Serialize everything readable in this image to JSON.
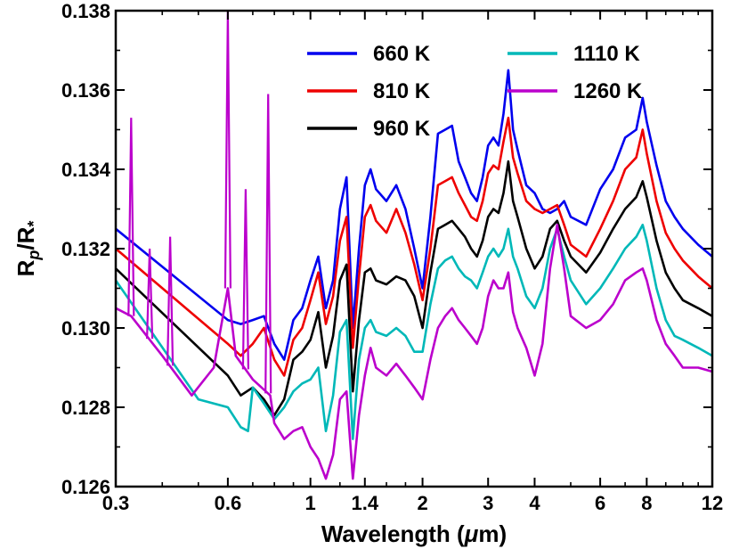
{
  "chart_data": {
    "type": "line",
    "xscale": "log",
    "xlabel_main": "Wavelength (",
    "xlabel_mu": "μ",
    "xlabel_unit": "m)",
    "ylabel_r": "R",
    "ylabel_p": "p",
    "ylabel_slash": "/R",
    "ylabel_star": "*",
    "xlim": [
      0.3,
      12
    ],
    "ylim": [
      0.126,
      0.138
    ],
    "xticks": [
      {
        "v": 0.3,
        "label": "0.3"
      },
      {
        "v": 0.6,
        "label": "0.6"
      },
      {
        "v": 1,
        "label": "1"
      },
      {
        "v": 1.4,
        "label": "1.4"
      },
      {
        "v": 2,
        "label": "2"
      },
      {
        "v": 3,
        "label": "3"
      },
      {
        "v": 4,
        "label": "4"
      },
      {
        "v": 6,
        "label": "6"
      },
      {
        "v": 8,
        "label": "8"
      },
      {
        "v": 12,
        "label": "12"
      }
    ],
    "xminor": [
      0.4,
      0.5,
      0.7,
      0.8,
      0.9,
      1.2,
      1.6,
      1.8,
      5,
      7,
      9,
      10,
      11
    ],
    "yticks": [
      {
        "v": 0.126,
        "label": "0.126"
      },
      {
        "v": 0.128,
        "label": "0.128"
      },
      {
        "v": 0.13,
        "label": "0.130"
      },
      {
        "v": 0.132,
        "label": "0.132"
      },
      {
        "v": 0.134,
        "label": "0.134"
      },
      {
        "v": 0.136,
        "label": "0.136"
      },
      {
        "v": 0.138,
        "label": "0.138"
      }
    ],
    "legend_position": "top-right",
    "series": [
      {
        "name": "660 K",
        "color": "#0000ee",
        "x": [
          0.3,
          0.6,
          0.65,
          0.7,
          0.75,
          0.8,
          0.85,
          0.9,
          0.95,
          1.0,
          1.05,
          1.1,
          1.15,
          1.2,
          1.25,
          1.3,
          1.35,
          1.4,
          1.45,
          1.5,
          1.6,
          1.7,
          1.8,
          1.9,
          2.0,
          2.1,
          2.2,
          2.3,
          2.4,
          2.5,
          2.6,
          2.7,
          2.8,
          2.9,
          3.0,
          3.1,
          3.2,
          3.3,
          3.4,
          3.5,
          3.6,
          3.8,
          4.0,
          4.2,
          4.4,
          4.6,
          4.8,
          5.0,
          5.5,
          6.0,
          6.5,
          7.0,
          7.5,
          7.8,
          8.0,
          8.5,
          9.0,
          9.5,
          10.0,
          11.0,
          12.0
        ],
        "y": [
          0.1325,
          0.1302,
          0.1301,
          0.1302,
          0.1303,
          0.1296,
          0.1292,
          0.1302,
          0.1305,
          0.1312,
          0.1318,
          0.1305,
          0.1312,
          0.133,
          0.1338,
          0.13,
          0.132,
          0.1336,
          0.134,
          0.1335,
          0.1332,
          0.1336,
          0.133,
          0.132,
          0.131,
          0.1328,
          0.1349,
          0.135,
          0.1351,
          0.1342,
          0.1338,
          0.1334,
          0.1332,
          0.1338,
          0.1346,
          0.1348,
          0.1346,
          0.1354,
          0.1365,
          0.135,
          0.1345,
          0.1336,
          0.1334,
          0.133,
          0.1329,
          0.133,
          0.1332,
          0.1328,
          0.1326,
          0.1335,
          0.134,
          0.1348,
          0.135,
          0.1358,
          0.1352,
          0.1341,
          0.1332,
          0.1328,
          0.1325,
          0.1321,
          0.1318
        ]
      },
      {
        "name": "810 K",
        "color": "#ee0000",
        "x": [
          0.3,
          0.6,
          0.65,
          0.7,
          0.75,
          0.8,
          0.85,
          0.9,
          0.95,
          1.0,
          1.05,
          1.1,
          1.15,
          1.2,
          1.25,
          1.3,
          1.35,
          1.4,
          1.45,
          1.5,
          1.6,
          1.7,
          1.8,
          1.9,
          2.0,
          2.1,
          2.2,
          2.3,
          2.4,
          2.5,
          2.6,
          2.7,
          2.8,
          2.9,
          3.0,
          3.1,
          3.2,
          3.3,
          3.4,
          3.5,
          3.6,
          3.8,
          4.0,
          4.2,
          4.4,
          4.6,
          4.8,
          5.0,
          5.5,
          6.0,
          6.5,
          7.0,
          7.5,
          7.8,
          8.0,
          8.5,
          9.0,
          9.5,
          10.0,
          11.0,
          12.0
        ],
        "y": [
          0.132,
          0.1296,
          0.1293,
          0.1296,
          0.13,
          0.1292,
          0.1288,
          0.1297,
          0.13,
          0.1307,
          0.1314,
          0.1301,
          0.1308,
          0.1322,
          0.1328,
          0.1295,
          0.1313,
          0.1328,
          0.1331,
          0.1327,
          0.1324,
          0.133,
          0.1324,
          0.1316,
          0.1307,
          0.132,
          0.1336,
          0.1337,
          0.1338,
          0.1334,
          0.1331,
          0.1328,
          0.1327,
          0.1332,
          0.1339,
          0.1341,
          0.134,
          0.1347,
          0.1353,
          0.1343,
          0.1339,
          0.1332,
          0.133,
          0.1329,
          0.133,
          0.1331,
          0.1326,
          0.1321,
          0.1318,
          0.1325,
          0.1332,
          0.134,
          0.1343,
          0.135,
          0.1344,
          0.1332,
          0.1324,
          0.132,
          0.1317,
          0.1313,
          0.131
        ]
      },
      {
        "name": "960 K",
        "color": "#000000",
        "x": [
          0.3,
          0.6,
          0.65,
          0.7,
          0.75,
          0.8,
          0.85,
          0.9,
          0.95,
          1.0,
          1.05,
          1.1,
          1.15,
          1.2,
          1.25,
          1.3,
          1.35,
          1.4,
          1.45,
          1.5,
          1.6,
          1.7,
          1.8,
          1.9,
          2.0,
          2.1,
          2.2,
          2.3,
          2.4,
          2.5,
          2.6,
          2.7,
          2.8,
          2.9,
          3.0,
          3.1,
          3.2,
          3.3,
          3.4,
          3.5,
          3.6,
          3.8,
          4.0,
          4.2,
          4.4,
          4.6,
          4.8,
          5.0,
          5.5,
          6.0,
          6.5,
          7.0,
          7.5,
          7.8,
          8.0,
          8.5,
          9.0,
          9.5,
          10.0,
          11.0,
          12.0
        ],
        "y": [
          0.1315,
          0.1288,
          0.1283,
          0.1285,
          0.1282,
          0.1278,
          0.1282,
          0.1292,
          0.1294,
          0.1297,
          0.1304,
          0.129,
          0.1298,
          0.1312,
          0.1316,
          0.1284,
          0.1302,
          0.1314,
          0.1315,
          0.1312,
          0.1311,
          0.1313,
          0.1312,
          0.1308,
          0.13,
          0.1314,
          0.1325,
          0.1326,
          0.1327,
          0.1325,
          0.1323,
          0.132,
          0.1318,
          0.1322,
          0.1328,
          0.133,
          0.1329,
          0.1334,
          0.1342,
          0.1332,
          0.1328,
          0.132,
          0.1315,
          0.1318,
          0.1325,
          0.1327,
          0.1322,
          0.1318,
          0.1314,
          0.1319,
          0.1325,
          0.133,
          0.1333,
          0.1337,
          0.1333,
          0.1322,
          0.1314,
          0.131,
          0.1307,
          0.1305,
          0.1303
        ]
      },
      {
        "name": "1110 K",
        "color": "#00b8b8",
        "x": [
          0.3,
          0.5,
          0.6,
          0.65,
          0.68,
          0.7,
          0.75,
          0.8,
          0.85,
          0.9,
          0.95,
          1.0,
          1.05,
          1.1,
          1.15,
          1.2,
          1.25,
          1.3,
          1.35,
          1.4,
          1.45,
          1.5,
          1.6,
          1.7,
          1.8,
          1.9,
          2.0,
          2.1,
          2.2,
          2.3,
          2.4,
          2.5,
          2.6,
          2.7,
          2.8,
          2.9,
          3.0,
          3.1,
          3.2,
          3.3,
          3.4,
          3.5,
          3.6,
          3.8,
          4.0,
          4.2,
          4.4,
          4.6,
          4.8,
          5.0,
          5.5,
          6.0,
          6.5,
          7.0,
          7.5,
          7.8,
          8.0,
          8.5,
          9.0,
          9.5,
          10.0,
          11.0,
          12.0
        ],
        "y": [
          0.1312,
          0.1282,
          0.128,
          0.1275,
          0.1274,
          0.1285,
          0.1281,
          0.1277,
          0.128,
          0.1284,
          0.1286,
          0.1287,
          0.129,
          0.1274,
          0.1283,
          0.1299,
          0.1302,
          0.1272,
          0.1292,
          0.13,
          0.1302,
          0.1299,
          0.1298,
          0.13,
          0.1298,
          0.1294,
          0.1294,
          0.1306,
          0.1315,
          0.1317,
          0.1318,
          0.1315,
          0.1313,
          0.1312,
          0.131,
          0.1314,
          0.1318,
          0.132,
          0.1318,
          0.132,
          0.1325,
          0.1318,
          0.1315,
          0.1308,
          0.1305,
          0.131,
          0.132,
          0.1325,
          0.1318,
          0.1312,
          0.1306,
          0.131,
          0.1315,
          0.132,
          0.1323,
          0.1326,
          0.1322,
          0.131,
          0.1302,
          0.1298,
          0.1297,
          0.1295,
          0.1293
        ]
      },
      {
        "name": "1260 K",
        "color": "#bb00cc",
        "x": [
          0.3,
          0.33,
          0.4,
          0.48,
          0.55,
          0.6,
          0.63,
          0.7,
          0.78,
          0.8,
          0.85,
          0.9,
          0.95,
          1.0,
          1.05,
          1.1,
          1.15,
          1.2,
          1.25,
          1.3,
          1.35,
          1.4,
          1.45,
          1.5,
          1.6,
          1.7,
          1.8,
          1.9,
          2.0,
          2.1,
          2.2,
          2.3,
          2.4,
          2.5,
          2.6,
          2.7,
          2.8,
          2.9,
          3.0,
          3.1,
          3.2,
          3.3,
          3.4,
          3.5,
          3.6,
          3.8,
          4.0,
          4.2,
          4.4,
          4.6,
          4.8,
          5.0,
          5.5,
          6.0,
          6.5,
          7.0,
          7.5,
          7.8,
          8.0,
          8.5,
          9.0,
          9.5,
          10.0,
          11.0,
          12.0
        ],
        "y": [
          0.1305,
          0.1303,
          0.1293,
          0.1283,
          0.129,
          0.131,
          0.1293,
          0.1287,
          0.1283,
          0.1276,
          0.1272,
          0.1274,
          0.1275,
          0.127,
          0.1267,
          0.1262,
          0.1268,
          0.1282,
          0.1284,
          0.1262,
          0.1278,
          0.1288,
          0.1295,
          0.129,
          0.1288,
          0.1291,
          0.1288,
          0.1285,
          0.1282,
          0.1292,
          0.13,
          0.1303,
          0.1305,
          0.1302,
          0.13,
          0.1298,
          0.1296,
          0.13,
          0.1308,
          0.1312,
          0.131,
          0.131,
          0.1314,
          0.1304,
          0.13,
          0.1295,
          0.1288,
          0.1296,
          0.1315,
          0.1326,
          0.1315,
          0.1303,
          0.13,
          0.1302,
          0.1306,
          0.1312,
          0.1314,
          0.1315,
          0.1312,
          0.1302,
          0.1296,
          0.1293,
          0.129,
          0.129,
          0.1289
        ]
      }
    ],
    "spikes": {
      "series_index": 4,
      "x": [
        0.33,
        0.37,
        0.42,
        0.6,
        0.67,
        0.77
      ],
      "y": [
        0.1353,
        0.132,
        0.1323,
        0.138,
        0.1335,
        0.1359
      ]
    }
  }
}
